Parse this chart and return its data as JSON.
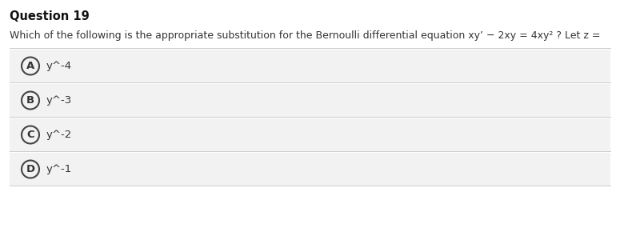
{
  "title": "Question 19",
  "question_part1": "Which of the following is the appropriate substitution for the Bernoulli differential equation ",
  "question_part2": "xy’ − 2xy = 4xy² ? Let z =",
  "options": [
    {
      "label": "A",
      "text": "y^-4"
    },
    {
      "label": "B",
      "text": "y^-3"
    },
    {
      "label": "C",
      "text": "y^-2"
    },
    {
      "label": "D",
      "text": "y^-1"
    }
  ],
  "bg_color": "#ffffff",
  "option_bg_color": "#f2f2f2",
  "option_border_color": "#cccccc",
  "title_fontsize": 10.5,
  "question_fontsize": 9.0,
  "option_fontsize": 9.5,
  "circle_color": "#444444",
  "text_color": "#333333",
  "title_color": "#111111"
}
